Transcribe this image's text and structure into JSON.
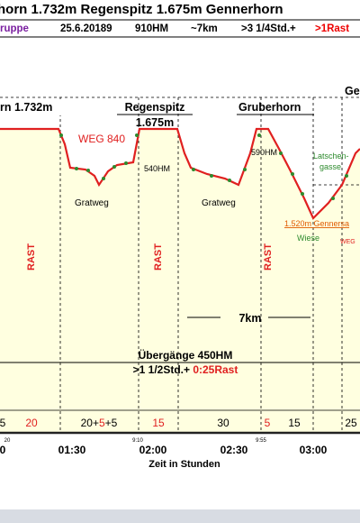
{
  "header": {
    "title": "horn 1.732m Regenspitz 1.675m Gennerhorn",
    "group": "ruppe",
    "date": "25.6.20189",
    "climb": "910HM",
    "distance": "~7km",
    "duration": ">3 1/4Std.+",
    "rest": ">1Rast"
  },
  "peaks": {
    "first": "rn 1.732m",
    "second_name": "Regenspitz",
    "second_height": "1.675m",
    "third": "Gruberhorn",
    "fourth": "Ge"
  },
  "annotations": {
    "way": "WEG 840",
    "hm1": "540HM",
    "hm2": "590HM",
    "latschen1": "Latschen-",
    "latschen2": "gasse",
    "ridge1": "Gratweg",
    "ridge2": "Gratweg",
    "saddle": "1.520m Gennersa",
    "meadow": "Wiese",
    "way2": "WEG"
  },
  "rests": [
    "RAST",
    "RAST",
    "RAST"
  ],
  "distance_label": "7km",
  "summary": {
    "line1": "Übergänge 450HM",
    "line2a": ">1 1/2Std.+ ",
    "line2b": "0:25Rast"
  },
  "segments": {
    "s0": "5",
    "s1": "20",
    "s2a": "20+",
    "s2b": "5",
    "s2c": "+5",
    "s3": "15",
    "s4": "30",
    "s5": "5",
    "s6": "15",
    "s7": "25"
  },
  "clock": [
    "20",
    "9:10",
    "9:55"
  ],
  "axis": {
    "ticks": [
      "0",
      "01:30",
      "02:00",
      "02:30",
      "03:00"
    ],
    "label": "Zeit in Stunden"
  }
}
